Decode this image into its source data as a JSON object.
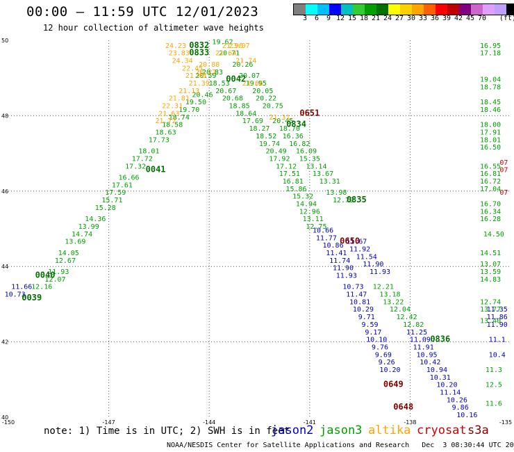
{
  "title": "00:00 – 11:59 UTC 12/01/2023",
  "subtitle": "12 hour collection of altimeter wave heights",
  "colorbar": {
    "colors": [
      "#7f7f7f",
      "#00ffff",
      "#00bfff",
      "#0000ff",
      "#00c0c0",
      "#33cc33",
      "#00a000",
      "#007000",
      "#ffff00",
      "#ffd000",
      "#ffa500",
      "#ff6000",
      "#ff0000",
      "#c00000",
      "#800080",
      "#cc66cc",
      "#e0a0ff",
      "#c0a0ff",
      "#000000"
    ],
    "ticks": [
      "3",
      "6",
      "9",
      "12",
      "15",
      "18",
      "21",
      "24",
      "27",
      "30",
      "33",
      "36",
      "39",
      "42",
      "45",
      "70"
    ],
    "unit": "(ft)"
  },
  "note": "note: 1) Time is in UTC; 2) SWH is in feet",
  "legend": [
    {
      "name": "jason2",
      "color": "#0000c0"
    },
    {
      "name": "jason3",
      "color": "#00a000"
    },
    {
      "name": "altika",
      "color": "#ffa500"
    },
    {
      "name": "cryosat",
      "color": "#cc0000"
    },
    {
      "name": "s3a",
      "color": "#800000"
    }
  ],
  "footer": "NOAA/NESDIS Center for Satellite Applications and Research   Dec  3 08:30:44 UTC 2023",
  "chart_data": {
    "type": "scatter",
    "xlim": [
      -150,
      -135
    ],
    "ylim": [
      40,
      50
    ],
    "x_ticks": [
      -150,
      -147,
      -144,
      -141,
      -138,
      -135
    ],
    "y_ticks": [
      40,
      42,
      44,
      46,
      48,
      50
    ],
    "grid": true,
    "series": [
      {
        "name": "jason3",
        "points": [
          [
            -149.0,
            43.4,
            "12.16"
          ],
          [
            -148.6,
            43.6,
            "12.07"
          ],
          [
            -148.5,
            43.8,
            "11.93"
          ],
          [
            -148.3,
            44.1,
            "12.67"
          ],
          [
            -148.2,
            44.3,
            "14.05"
          ],
          [
            -148.0,
            44.6,
            "13.69"
          ],
          [
            -147.8,
            44.8,
            "14.74"
          ],
          [
            -147.6,
            45.0,
            "13.99"
          ],
          [
            -147.4,
            45.2,
            "14.36"
          ],
          [
            -147.1,
            45.5,
            "15.28"
          ],
          [
            -146.9,
            45.7,
            "15.71"
          ],
          [
            -146.8,
            45.9,
            "17.59"
          ],
          [
            -146.6,
            46.1,
            "17.61"
          ],
          [
            -146.4,
            46.3,
            "16.66"
          ],
          [
            -146.2,
            46.6,
            "17.32"
          ],
          [
            -146.0,
            46.8,
            "17.72"
          ],
          [
            -145.8,
            47.0,
            "18.01"
          ],
          [
            -145.5,
            47.3,
            "17.73"
          ],
          [
            -145.3,
            47.5,
            "18.63"
          ],
          [
            -145.1,
            47.7,
            "18.58"
          ],
          [
            -144.9,
            47.9,
            "18.74"
          ],
          [
            -144.6,
            48.1,
            "19.70"
          ],
          [
            -144.4,
            48.3,
            "19.50"
          ],
          [
            -144.2,
            48.5,
            "20.46"
          ],
          [
            -144.1,
            49.0,
            "20.59"
          ],
          [
            -143.9,
            49.1,
            "20.83"
          ],
          [
            -143.7,
            48.8,
            "18.53"
          ],
          [
            -143.5,
            48.6,
            "20.67"
          ],
          [
            -143.3,
            48.4,
            "20.68"
          ],
          [
            -143.1,
            48.2,
            "18.85"
          ],
          [
            -142.9,
            48.0,
            "18.64"
          ],
          [
            -142.7,
            47.8,
            "17.69"
          ],
          [
            -142.5,
            47.6,
            "18.27"
          ],
          [
            -142.3,
            47.4,
            "18.52"
          ],
          [
            -142.2,
            47.2,
            "19.74"
          ],
          [
            -142.0,
            47.0,
            "20.49"
          ],
          [
            -141.9,
            46.8,
            "17.92"
          ],
          [
            -141.7,
            46.6,
            "17.12"
          ],
          [
            -141.6,
            46.4,
            "17.51"
          ],
          [
            -141.5,
            46.2,
            "16.81"
          ],
          [
            -141.4,
            46.0,
            "15.86"
          ],
          [
            -141.2,
            45.8,
            "15.32"
          ],
          [
            -141.1,
            45.6,
            "14.94"
          ],
          [
            -141.0,
            45.4,
            "12.96"
          ],
          [
            -140.9,
            45.2,
            "13.11"
          ],
          [
            -140.8,
            45.0,
            "12.75"
          ],
          [
            -143.6,
            49.9,
            "19.62"
          ],
          [
            -143.4,
            49.6,
            "20.71"
          ],
          [
            -143.0,
            49.3,
            "20.26"
          ],
          [
            -142.8,
            49.0,
            "20.07"
          ],
          [
            -142.6,
            48.8,
            "19.95"
          ],
          [
            -142.4,
            48.6,
            "20.05"
          ],
          [
            -142.3,
            48.4,
            "20.22"
          ],
          [
            -142.1,
            48.2,
            "20.75"
          ],
          [
            -141.8,
            47.8,
            "20.45"
          ],
          [
            -141.6,
            47.6,
            "18.70"
          ],
          [
            -141.5,
            47.4,
            "16.36"
          ],
          [
            -141.3,
            47.2,
            "16.82"
          ],
          [
            -141.1,
            47.0,
            "16.09"
          ],
          [
            -141.0,
            46.8,
            "15.35"
          ],
          [
            -140.8,
            46.6,
            "13.14"
          ],
          [
            -140.6,
            46.4,
            "13.67"
          ],
          [
            -140.4,
            46.2,
            "13.31"
          ],
          [
            -140.2,
            45.9,
            "13.98"
          ],
          [
            -140.0,
            45.7,
            "12.79"
          ],
          [
            -138.8,
            43.4,
            "12.21"
          ],
          [
            -138.6,
            43.2,
            "13.18"
          ],
          [
            -138.5,
            43.0,
            "13.22"
          ],
          [
            -138.3,
            42.8,
            "12.04"
          ],
          [
            -138.1,
            42.6,
            "12.42"
          ],
          [
            -137.9,
            42.4,
            "12.82"
          ],
          [
            -135.6,
            49.8,
            "16.95"
          ],
          [
            -135.6,
            49.6,
            "17.18"
          ],
          [
            -135.6,
            48.9,
            "19.04"
          ],
          [
            -135.6,
            48.7,
            "18.78"
          ],
          [
            -135.6,
            48.3,
            "18.45"
          ],
          [
            -135.6,
            48.1,
            "18.46"
          ],
          [
            -135.6,
            47.7,
            "18.00"
          ],
          [
            -135.6,
            47.5,
            "17.91"
          ],
          [
            -135.6,
            47.3,
            "18.01"
          ],
          [
            -135.6,
            47.1,
            "16.50"
          ],
          [
            -135.6,
            46.6,
            "16.55"
          ],
          [
            -135.6,
            46.4,
            "16.81"
          ],
          [
            -135.6,
            46.2,
            "16.72"
          ],
          [
            -135.6,
            46.0,
            "17.04"
          ],
          [
            -135.6,
            45.6,
            "16.70"
          ],
          [
            -135.6,
            45.4,
            "16.34"
          ],
          [
            -135.6,
            45.2,
            "16.28"
          ],
          [
            -135.5,
            44.8,
            "14.50"
          ],
          [
            -135.6,
            44.3,
            "14.51"
          ],
          [
            -135.6,
            44.0,
            "13.07"
          ],
          [
            -135.6,
            43.8,
            "13.59"
          ],
          [
            -135.6,
            43.6,
            "14.83"
          ],
          [
            -135.6,
            43.0,
            "12.74"
          ],
          [
            -135.6,
            42.8,
            "13.77"
          ],
          [
            -135.6,
            42.5,
            "13.40"
          ],
          [
            -135.5,
            41.2,
            "11.3"
          ],
          [
            -135.5,
            40.8,
            "12.5"
          ],
          [
            -135.5,
            40.3,
            "11.6"
          ]
        ]
      },
      {
        "name": "jason2",
        "points": [
          [
            -149.8,
            43.2,
            "10.73"
          ],
          [
            -149.6,
            43.4,
            "11.66"
          ],
          [
            -140.6,
            44.9,
            "10.66"
          ],
          [
            -140.5,
            44.7,
            "11.77"
          ],
          [
            -140.3,
            44.5,
            "10.86"
          ],
          [
            -140.2,
            44.3,
            "11.41"
          ],
          [
            -140.1,
            44.1,
            "11.74"
          ],
          [
            -140.0,
            43.9,
            "11.90"
          ],
          [
            -139.9,
            43.7,
            "11.93"
          ],
          [
            -139.7,
            43.4,
            "10.73"
          ],
          [
            -139.6,
            43.2,
            "11.47"
          ],
          [
            -139.5,
            43.0,
            "10.81"
          ],
          [
            -139.4,
            42.8,
            "10.29"
          ],
          [
            -139.3,
            42.6,
            "9.71"
          ],
          [
            -139.2,
            42.4,
            "9.59"
          ],
          [
            -139.1,
            42.2,
            "9.17"
          ],
          [
            -139.0,
            42.0,
            "10.10"
          ],
          [
            -138.9,
            41.8,
            "9.76"
          ],
          [
            -138.8,
            41.6,
            "9.69"
          ],
          [
            -138.7,
            41.4,
            "9.26"
          ],
          [
            -138.6,
            41.2,
            "10.20"
          ],
          [
            -139.6,
            44.6,
            "11.67"
          ],
          [
            -139.5,
            44.4,
            "11.92"
          ],
          [
            -139.3,
            44.2,
            "11.54"
          ],
          [
            -139.1,
            44.0,
            "11.90"
          ],
          [
            -138.9,
            43.8,
            "11.93"
          ],
          [
            -137.8,
            42.2,
            "11.25"
          ],
          [
            -137.7,
            42.0,
            "11.09"
          ],
          [
            -137.6,
            41.8,
            "11.91"
          ],
          [
            -137.5,
            41.6,
            "10.95"
          ],
          [
            -137.4,
            41.4,
            "10.42"
          ],
          [
            -137.2,
            41.2,
            "10.94"
          ],
          [
            -137.1,
            41.0,
            "10.31"
          ],
          [
            -136.9,
            40.8,
            "10.20"
          ],
          [
            -136.8,
            40.6,
            "11.14"
          ],
          [
            -136.6,
            40.4,
            "10.26"
          ],
          [
            -136.5,
            40.2,
            "9.86"
          ],
          [
            -136.3,
            40.0,
            "10.16"
          ],
          [
            -135.4,
            42.8,
            "11.35"
          ],
          [
            -135.4,
            42.6,
            "11.86"
          ],
          [
            -135.4,
            42.4,
            "11.90"
          ],
          [
            -135.4,
            42.0,
            "11.1"
          ],
          [
            -135.4,
            41.6,
            "10.4"
          ]
        ]
      },
      {
        "name": "altika",
        "points": [
          [
            -145.0,
            49.8,
            "24.23"
          ],
          [
            -144.9,
            49.6,
            "23.83"
          ],
          [
            -144.8,
            49.4,
            "24.34"
          ],
          [
            -144.5,
            49.2,
            "22.45"
          ],
          [
            -144.4,
            49.0,
            "21.40"
          ],
          [
            -144.3,
            48.8,
            "21.39"
          ],
          [
            -144.6,
            48.6,
            "21.13"
          ],
          [
            -144.9,
            48.4,
            "21.81"
          ],
          [
            -145.1,
            48.2,
            "22.31"
          ],
          [
            -145.2,
            48.0,
            "21.63"
          ],
          [
            -145.3,
            47.8,
            "21.72"
          ],
          [
            -143.3,
            49.8,
            "21.96"
          ],
          [
            -143.1,
            49.8,
            "23.07"
          ],
          [
            -142.9,
            49.4,
            "21.74"
          ],
          [
            -142.7,
            48.8,
            "21.66"
          ],
          [
            -141.9,
            47.9,
            "21.31"
          ],
          [
            -143.5,
            49.6,
            "21.64"
          ],
          [
            -144.0,
            49.3,
            "20.88"
          ],
          [
            -144.1,
            49.1,
            "20.27"
          ]
        ]
      },
      {
        "name": "cryosat",
        "points": [
          [
            -135.2,
            46.7,
            "07"
          ],
          [
            -135.2,
            46.5,
            "07"
          ],
          [
            -135.2,
            45.9,
            "07"
          ]
        ]
      },
      {
        "name": "s3a",
        "points": []
      }
    ],
    "time_labels": [
      {
        "x": -144.3,
        "y": 49.8,
        "text": "0832",
        "color": "#007000"
      },
      {
        "x": -144.3,
        "y": 49.6,
        "text": "0833",
        "color": "#007000"
      },
      {
        "x": -143.2,
        "y": 48.9,
        "text": "0042",
        "color": "#007000"
      },
      {
        "x": -145.6,
        "y": 46.5,
        "text": "0041",
        "color": "#007000"
      },
      {
        "x": -148.9,
        "y": 43.7,
        "text": "0040",
        "color": "#007000"
      },
      {
        "x": -149.3,
        "y": 43.1,
        "text": "0039",
        "color": "#007000"
      },
      {
        "x": -141.4,
        "y": 47.7,
        "text": "0834",
        "color": "#007000"
      },
      {
        "x": -141.0,
        "y": 48.0,
        "text": "0651",
        "color": "#800000"
      },
      {
        "x": -139.6,
        "y": 45.7,
        "text": "0835",
        "color": "#007000"
      },
      {
        "x": -139.8,
        "y": 44.6,
        "text": "0650",
        "color": "#800000"
      },
      {
        "x": -137.1,
        "y": 42.0,
        "text": "0836",
        "color": "#007000"
      },
      {
        "x": -138.5,
        "y": 40.8,
        "text": "0649",
        "color": "#800000"
      },
      {
        "x": -138.2,
        "y": 40.2,
        "text": "0648",
        "color": "#800000"
      }
    ]
  }
}
